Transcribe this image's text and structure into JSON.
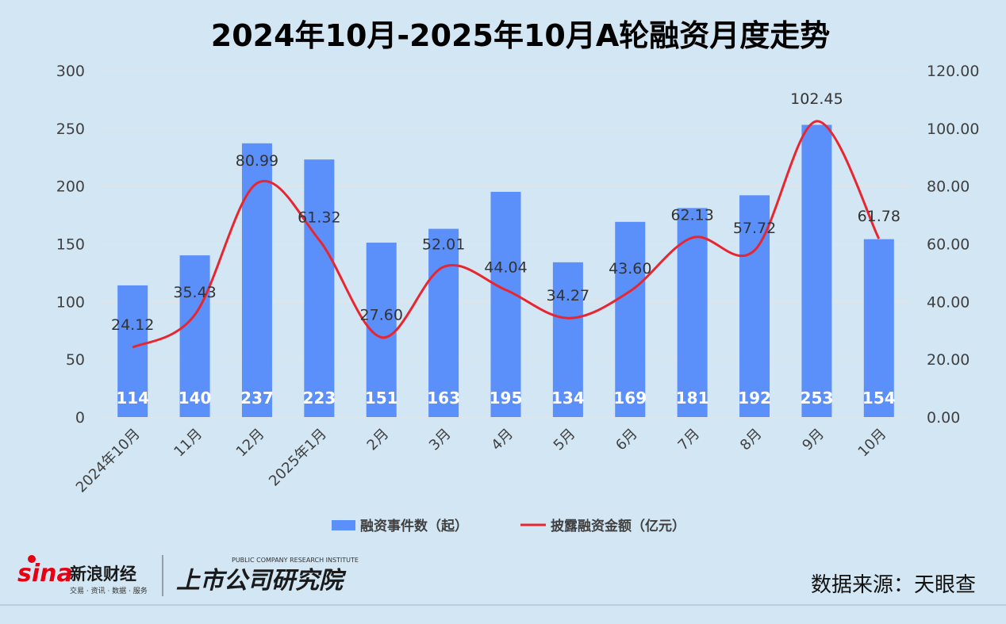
{
  "chart_data": {
    "type": "bar",
    "title": "2024年10月-2025年10月A轮融资月度走势",
    "categories": [
      "2024年10月",
      "11月",
      "12月",
      "2025年1月",
      "2月",
      "3月",
      "4月",
      "5月",
      "6月",
      "7月",
      "8月",
      "9月",
      "10月"
    ],
    "series": [
      {
        "name": "融资事件数（起）",
        "type": "bar",
        "axis": "left",
        "color": "#5b8ff9",
        "values": [
          114,
          140,
          237,
          223,
          151,
          163,
          195,
          134,
          169,
          181,
          192,
          253,
          154
        ],
        "labels": [
          "114",
          "140",
          "237",
          "223",
          "151",
          "163",
          "195",
          "134",
          "169",
          "181",
          "192",
          "253",
          "154"
        ]
      },
      {
        "name": "披露融资金额（亿元）",
        "type": "line",
        "axis": "right",
        "color": "#e8262f",
        "values": [
          24.12,
          35.43,
          80.99,
          61.32,
          27.6,
          52.01,
          44.04,
          34.27,
          43.6,
          62.13,
          57.72,
          102.45,
          61.78
        ],
        "labels": [
          "24.12",
          "35.43",
          "80.99",
          "61.32",
          "27.60",
          "52.01",
          "44.04",
          "34.27",
          "43.60",
          "62.13",
          "57.72",
          "102.45",
          "61.78"
        ]
      }
    ],
    "y_left": {
      "range": [
        0,
        300
      ],
      "ticks": [
        "0",
        "50",
        "100",
        "150",
        "200",
        "250",
        "300"
      ]
    },
    "y_right": {
      "range": [
        0,
        120
      ],
      "ticks": [
        "0.00",
        "20.00",
        "40.00",
        "60.00",
        "80.00",
        "100.00",
        "120.00"
      ]
    },
    "grid": true,
    "legend": "bottom"
  },
  "footer": {
    "brand_sina": "sina",
    "brand_name": "新浪财经",
    "brand_sub": "交易 · 资讯 · 数据 · 服务",
    "brand_institute": "上市公司研究院",
    "brand_institute_en": "PUBLIC COMPANY RESEARCH INSTITUTE",
    "source": "数据来源：天眼查"
  }
}
